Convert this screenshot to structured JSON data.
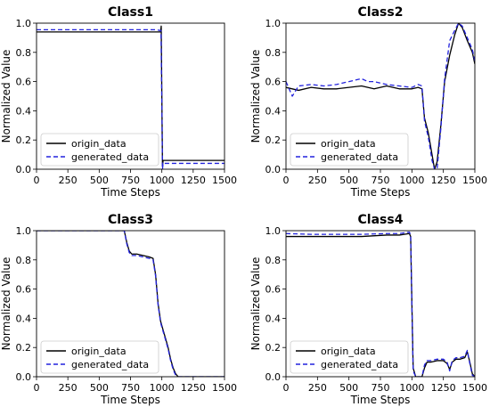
{
  "chart_data": [
    {
      "type": "line",
      "title": "Class1",
      "xlabel": "Time Steps",
      "ylabel": "Normalized Value",
      "xlim": [
        0,
        1500
      ],
      "ylim": [
        0,
        1.0
      ],
      "xticks": [
        "0",
        "250",
        "500",
        "750",
        "1000",
        "1250",
        "1500"
      ],
      "yticks": [
        "0.0",
        "0.2",
        "0.4",
        "0.6",
        "0.8",
        "1.0"
      ],
      "legend": "lower-left",
      "series": [
        {
          "name": "origin_data",
          "color": "#000000",
          "dash": "solid",
          "x": [
            0,
            200,
            400,
            600,
            800,
            950,
            990,
            995,
            1000,
            1005,
            1010,
            1020,
            1050,
            1200,
            1350,
            1500
          ],
          "y": [
            0.94,
            0.94,
            0.94,
            0.94,
            0.94,
            0.94,
            0.94,
            0.98,
            0.5,
            0.02,
            0.06,
            0.06,
            0.06,
            0.06,
            0.06,
            0.06
          ]
        },
        {
          "name": "generated_data",
          "color": "#2222dd",
          "dash": "dashed",
          "x": [
            0,
            200,
            400,
            600,
            800,
            950,
            985,
            993,
            1000,
            1005,
            1010,
            1030,
            1100,
            1250,
            1400,
            1500
          ],
          "y": [
            0.955,
            0.955,
            0.955,
            0.955,
            0.955,
            0.955,
            0.95,
            0.95,
            0.45,
            0.0,
            0.04,
            0.04,
            0.04,
            0.04,
            0.04,
            0.04
          ]
        }
      ]
    },
    {
      "type": "line",
      "title": "Class2",
      "xlabel": "Time Steps",
      "ylabel": "Normalized Value",
      "xlim": [
        0,
        1500
      ],
      "ylim": [
        0,
        1.0
      ],
      "xticks": [
        "0",
        "250",
        "500",
        "750",
        "1000",
        "1250",
        "1500"
      ],
      "yticks": [
        "0.0",
        "0.2",
        "0.4",
        "0.6",
        "0.8",
        "1.0"
      ],
      "legend": "lower-left",
      "series": [
        {
          "name": "origin_data",
          "color": "#000000",
          "dash": "solid",
          "x": [
            0,
            100,
            200,
            300,
            400,
            500,
            600,
            700,
            800,
            900,
            1000,
            1050,
            1080,
            1100,
            1130,
            1160,
            1180,
            1200,
            1230,
            1260,
            1300,
            1340,
            1370,
            1400,
            1440,
            1480,
            1500
          ],
          "y": [
            0.56,
            0.54,
            0.56,
            0.55,
            0.55,
            0.56,
            0.57,
            0.55,
            0.57,
            0.55,
            0.55,
            0.56,
            0.55,
            0.35,
            0.25,
            0.1,
            0.0,
            0.05,
            0.3,
            0.6,
            0.78,
            0.92,
            1.0,
            0.97,
            0.88,
            0.8,
            0.72
          ]
        },
        {
          "name": "generated_data",
          "color": "#2222dd",
          "dash": "dashed",
          "x": [
            0,
            50,
            100,
            200,
            300,
            400,
            500,
            600,
            650,
            700,
            800,
            900,
            1000,
            1050,
            1080,
            1100,
            1130,
            1160,
            1180,
            1200,
            1230,
            1260,
            1300,
            1340,
            1370,
            1400,
            1440,
            1480,
            1500
          ],
          "y": [
            0.6,
            0.5,
            0.57,
            0.58,
            0.57,
            0.58,
            0.6,
            0.62,
            0.6,
            0.6,
            0.58,
            0.57,
            0.56,
            0.58,
            0.57,
            0.33,
            0.22,
            0.06,
            0.0,
            0.0,
            0.28,
            0.62,
            0.88,
            0.95,
            1.0,
            0.98,
            0.9,
            0.82,
            0.74
          ]
        }
      ]
    },
    {
      "type": "line",
      "title": "Class3",
      "xlabel": "Time Steps",
      "ylabel": "Normalized Value",
      "xlim": [
        0,
        1500
      ],
      "ylim": [
        0,
        1.0
      ],
      "xticks": [
        "0",
        "250",
        "500",
        "750",
        "1000",
        "1250",
        "1500"
      ],
      "yticks": [
        "0.0",
        "0.2",
        "0.4",
        "0.6",
        "0.8",
        "1.0"
      ],
      "legend": "lower-left",
      "series": [
        {
          "name": "origin_data",
          "color": "#000000",
          "dash": "solid",
          "x": [
            0,
            200,
            400,
            600,
            700,
            720,
            740,
            760,
            800,
            850,
            900,
            930,
            950,
            970,
            990,
            1010,
            1030,
            1050,
            1070,
            1090,
            1110,
            1130,
            1150,
            1300,
            1500
          ],
          "y": [
            1.0,
            1.0,
            1.0,
            1.0,
            1.0,
            0.92,
            0.86,
            0.84,
            0.84,
            0.83,
            0.82,
            0.81,
            0.7,
            0.5,
            0.38,
            0.32,
            0.26,
            0.2,
            0.12,
            0.06,
            0.02,
            0.0,
            0.0,
            0.0,
            0.0
          ]
        },
        {
          "name": "generated_data",
          "color": "#2222dd",
          "dash": "dashed",
          "x": [
            0,
            200,
            400,
            600,
            700,
            720,
            740,
            760,
            800,
            850,
            900,
            930,
            950,
            970,
            990,
            1010,
            1030,
            1050,
            1070,
            1090,
            1110,
            1130,
            1150,
            1300,
            1500
          ],
          "y": [
            1.0,
            1.0,
            1.0,
            1.0,
            1.0,
            0.91,
            0.85,
            0.83,
            0.83,
            0.82,
            0.81,
            0.8,
            0.69,
            0.49,
            0.37,
            0.31,
            0.25,
            0.19,
            0.11,
            0.05,
            0.01,
            0.0,
            0.0,
            0.0,
            0.0
          ]
        }
      ]
    },
    {
      "type": "line",
      "title": "Class4",
      "xlabel": "Time Steps",
      "ylabel": "Normalized Value",
      "xlim": [
        0,
        1500
      ],
      "ylim": [
        0,
        1.0
      ],
      "xticks": [
        "0",
        "250",
        "500",
        "750",
        "1000",
        "1250",
        "1500"
      ],
      "yticks": [
        "0.0",
        "0.2",
        "0.4",
        "0.6",
        "0.8",
        "1.0"
      ],
      "legend": "lower-left",
      "series": [
        {
          "name": "origin_data",
          "color": "#000000",
          "dash": "solid",
          "x": [
            0,
            200,
            400,
            600,
            800,
            900,
            980,
            990,
            1000,
            1010,
            1030,
            1080,
            1100,
            1120,
            1150,
            1200,
            1250,
            1280,
            1300,
            1320,
            1350,
            1380,
            1420,
            1440,
            1460,
            1480,
            1500
          ],
          "y": [
            0.96,
            0.96,
            0.96,
            0.96,
            0.97,
            0.97,
            0.98,
            0.96,
            0.5,
            0.06,
            0.0,
            0.0,
            0.06,
            0.1,
            0.1,
            0.11,
            0.11,
            0.09,
            0.05,
            0.1,
            0.12,
            0.12,
            0.13,
            0.17,
            0.1,
            0.02,
            0.0
          ]
        },
        {
          "name": "generated_data",
          "color": "#2222dd",
          "dash": "dashed",
          "x": [
            0,
            200,
            400,
            600,
            800,
            900,
            980,
            990,
            1000,
            1010,
            1030,
            1080,
            1100,
            1120,
            1150,
            1200,
            1250,
            1280,
            1300,
            1320,
            1350,
            1380,
            1420,
            1440,
            1460,
            1480,
            1500
          ],
          "y": [
            0.98,
            0.975,
            0.975,
            0.975,
            0.98,
            0.98,
            0.99,
            0.97,
            0.48,
            0.04,
            0.0,
            0.0,
            0.08,
            0.11,
            0.11,
            0.12,
            0.12,
            0.1,
            0.04,
            0.11,
            0.13,
            0.13,
            0.14,
            0.18,
            0.09,
            0.01,
            0.0
          ]
        }
      ]
    }
  ]
}
